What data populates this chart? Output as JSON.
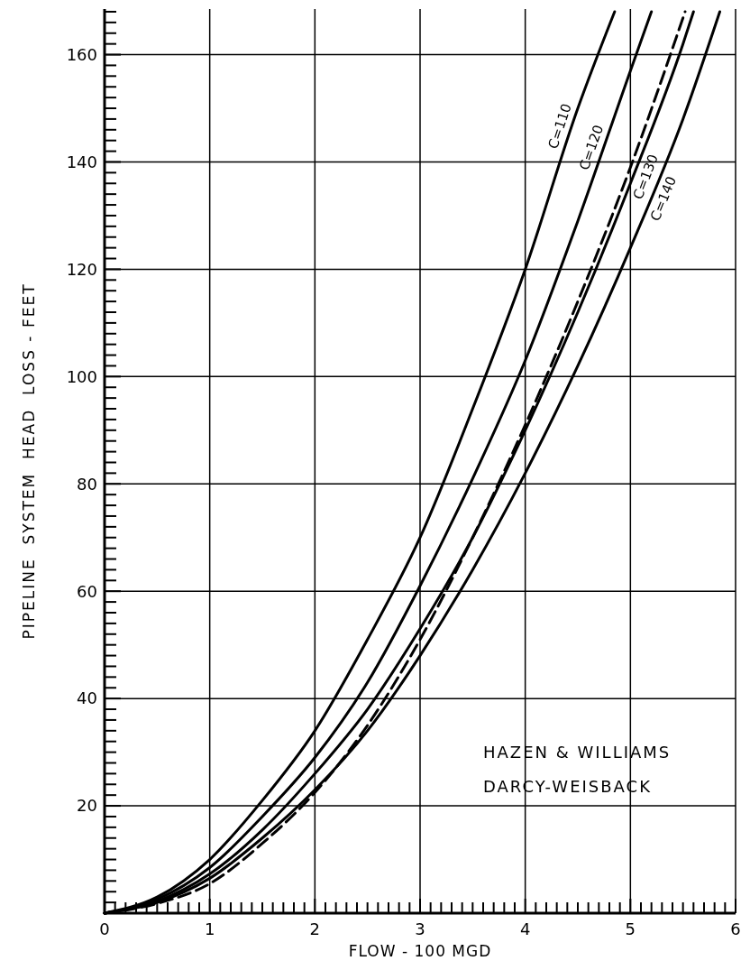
{
  "chart_data": {
    "type": "line",
    "xlabel": "FLOW - 100 MGD",
    "ylabel": "PIPELINE  SYSTEM  HEAD  LOSS - FEET",
    "xlim": [
      0,
      6
    ],
    "ylim": [
      0,
      168.5
    ],
    "xticks": [
      0,
      {
        "value": 0.1,
        "label": null
      },
      {
        "value": 0.2,
        "label": null
      },
      {
        "value": 0.3,
        "label": null
      },
      {
        "value": 0.4,
        "label": null
      },
      {
        "value": 0.5,
        "label": null
      },
      {
        "value": 0.6,
        "label": null
      },
      {
        "value": 0.7,
        "label": null
      },
      {
        "value": 0.8,
        "label": null
      },
      {
        "value": 0.9,
        "label": null
      },
      1,
      {
        "value": 1.1,
        "label": null
      },
      {
        "value": 1.2,
        "label": null
      },
      {
        "value": 1.3,
        "label": null
      },
      {
        "value": 1.4,
        "label": null
      },
      {
        "value": 1.5,
        "label": null
      },
      {
        "value": 1.6,
        "label": null
      },
      {
        "value": 1.7,
        "label": null
      },
      {
        "value": 1.8,
        "label": null
      },
      {
        "value": 1.9,
        "label": null
      },
      2,
      {
        "value": 2.1,
        "label": null
      },
      {
        "value": 2.2,
        "label": null
      },
      {
        "value": 2.3,
        "label": null
      },
      {
        "value": 2.4,
        "label": null
      },
      {
        "value": 2.5,
        "label": null
      },
      {
        "value": 2.6,
        "label": null
      },
      {
        "value": 2.7,
        "label": null
      },
      {
        "value": 2.8,
        "label": null
      },
      {
        "value": 2.9,
        "label": null
      },
      3,
      {
        "value": 3.1,
        "label": null
      },
      {
        "value": 3.2,
        "label": null
      },
      {
        "value": 3.3,
        "label": null
      },
      {
        "value": 3.4,
        "label": null
      },
      {
        "value": 3.5,
        "label": null
      },
      {
        "value": 3.6,
        "label": null
      },
      {
        "value": 3.7,
        "label": null
      },
      {
        "value": 3.8,
        "label": null
      },
      {
        "value": 3.9,
        "label": null
      },
      4,
      {
        "value": 4.1,
        "label": null
      },
      {
        "value": 4.2,
        "label": null
      },
      {
        "value": 4.3,
        "label": null
      },
      {
        "value": 4.4,
        "label": null
      },
      {
        "value": 4.5,
        "label": null
      },
      {
        "value": 4.6,
        "label": null
      },
      {
        "value": 4.7,
        "label": null
      },
      {
        "value": 4.8,
        "label": null
      },
      {
        "value": 4.9,
        "label": null
      },
      5,
      {
        "value": 5.1,
        "label": null
      },
      {
        "value": 5.2,
        "label": null
      },
      {
        "value": 5.3,
        "label": null
      },
      {
        "value": 5.4,
        "label": null
      },
      {
        "value": 5.5,
        "label": null
      },
      {
        "value": 5.6,
        "label": null
      },
      {
        "value": 5.7,
        "label": null
      },
      {
        "value": 5.8,
        "label": null
      },
      {
        "value": 5.9,
        "label": null
      },
      6
    ],
    "yticks": [
      {
        "value": 2,
        "label": null
      },
      {
        "value": 4,
        "label": null
      },
      {
        "value": 6,
        "label": null
      },
      {
        "value": 8,
        "label": null
      },
      {
        "value": 10,
        "label": null
      },
      {
        "value": 12,
        "label": null
      },
      {
        "value": 14,
        "label": null
      },
      {
        "value": 16,
        "label": null
      },
      {
        "value": 18,
        "label": null
      },
      20,
      {
        "value": 22,
        "label": null
      },
      {
        "value": 24,
        "label": null
      },
      {
        "value": 26,
        "label": null
      },
      {
        "value": 28,
        "label": null
      },
      {
        "value": 30,
        "label": null
      },
      {
        "value": 32,
        "label": null
      },
      {
        "value": 34,
        "label": null
      },
      {
        "value": 36,
        "label": null
      },
      {
        "value": 38,
        "label": null
      },
      40,
      {
        "value": 42,
        "label": null
      },
      {
        "value": 44,
        "label": null
      },
      {
        "value": 46,
        "label": null
      },
      {
        "value": 48,
        "label": null
      },
      {
        "value": 50,
        "label": null
      },
      {
        "value": 52,
        "label": null
      },
      {
        "value": 54,
        "label": null
      },
      {
        "value": 56,
        "label": null
      },
      {
        "value": 58,
        "label": null
      },
      60,
      {
        "value": 62,
        "label": null
      },
      {
        "value": 64,
        "label": null
      },
      {
        "value": 66,
        "label": null
      },
      {
        "value": 68,
        "label": null
      },
      {
        "value": 70,
        "label": null
      },
      {
        "value": 72,
        "label": null
      },
      {
        "value": 74,
        "label": null
      },
      {
        "value": 76,
        "label": null
      },
      {
        "value": 78,
        "label": null
      },
      80,
      {
        "value": 82,
        "label": null
      },
      {
        "value": 84,
        "label": null
      },
      {
        "value": 86,
        "label": null
      },
      {
        "value": 88,
        "label": null
      },
      {
        "value": 90,
        "label": null
      },
      {
        "value": 92,
        "label": null
      },
      {
        "value": 94,
        "label": null
      },
      {
        "value": 96,
        "label": null
      },
      {
        "value": 98,
        "label": null
      },
      100,
      {
        "value": 102,
        "label": null
      },
      {
        "value": 104,
        "label": null
      },
      {
        "value": 106,
        "label": null
      },
      {
        "value": 108,
        "label": null
      },
      {
        "value": 110,
        "label": null
      },
      {
        "value": 112,
        "label": null
      },
      {
        "value": 114,
        "label": null
      },
      {
        "value": 116,
        "label": null
      },
      {
        "value": 118,
        "label": null
      },
      120,
      {
        "value": 122,
        "label": null
      },
      {
        "value": 124,
        "label": null
      },
      {
        "value": 126,
        "label": null
      },
      {
        "value": 128,
        "label": null
      },
      {
        "value": 130,
        "label": null
      },
      {
        "value": 132,
        "label": null
      },
      {
        "value": 134,
        "label": null
      },
      {
        "value": 136,
        "label": null
      },
      {
        "value": 138,
        "label": null
      },
      140,
      {
        "value": 142,
        "label": null
      },
      {
        "value": 144,
        "label": null
      },
      {
        "value": 146,
        "label": null
      },
      {
        "value": 148,
        "label": null
      },
      {
        "value": 150,
        "label": null
      },
      {
        "value": 152,
        "label": null
      },
      {
        "value": 154,
        "label": null
      },
      {
        "value": 156,
        "label": null
      },
      {
        "value": 158,
        "label": null
      },
      160,
      {
        "value": 162,
        "label": null
      },
      {
        "value": 164,
        "label": null
      },
      {
        "value": 166,
        "label": null
      },
      {
        "value": 168,
        "label": null
      }
    ],
    "grid": true,
    "marker": "none",
    "series": [
      {
        "name": "C=110",
        "color": "#000000",
        "x": [
          0,
          0.5,
          1,
          1.5,
          2,
          2.5,
          3,
          3.5,
          4,
          4.5,
          4.85
        ],
        "values": [
          0,
          3,
          10,
          21,
          34,
          51,
          70,
          94,
          120,
          150,
          168
        ]
      },
      {
        "name": "C=120",
        "color": "#000000",
        "x": [
          0,
          0.5,
          1,
          1.5,
          2,
          2.5,
          3,
          3.5,
          4,
          4.5,
          5,
          5.2
        ],
        "values": [
          0,
          2.6,
          8.5,
          18,
          29,
          43,
          61,
          81,
          103,
          129,
          157,
          168
        ]
      },
      {
        "name": "C=130",
        "color": "#000000",
        "x": [
          0,
          0.5,
          1,
          1.5,
          2,
          2.5,
          3,
          3.5,
          4,
          4.5,
          5,
          5.5,
          5.6
        ],
        "values": [
          0,
          2.2,
          7.3,
          15.5,
          26,
          38,
          53,
          70,
          90,
          112,
          136,
          162,
          168
        ]
      },
      {
        "name": "C=140",
        "color": "#000000",
        "x": [
          0,
          0.5,
          1,
          1.5,
          2,
          2.5,
          3,
          3.5,
          4,
          4.5,
          5,
          5.5,
          5.85
        ],
        "values": [
          0,
          2,
          6.5,
          14,
          23,
          34,
          48,
          64,
          82,
          102,
          124,
          148,
          168
        ]
      },
      {
        "color": "#000000",
        "line_style": "dashed",
        "x": [
          0,
          0.5,
          1,
          1.5,
          2,
          2.5,
          3,
          3.5,
          4,
          4.5,
          5,
          5.52
        ],
        "values": [
          0,
          1.8,
          5.5,
          13,
          22.5,
          35,
          51,
          70,
          91,
          114,
          139,
          168
        ]
      }
    ],
    "annotations": [
      "HAZEN & WILLIAMS",
      "DARCY-WEISBACK"
    ]
  }
}
